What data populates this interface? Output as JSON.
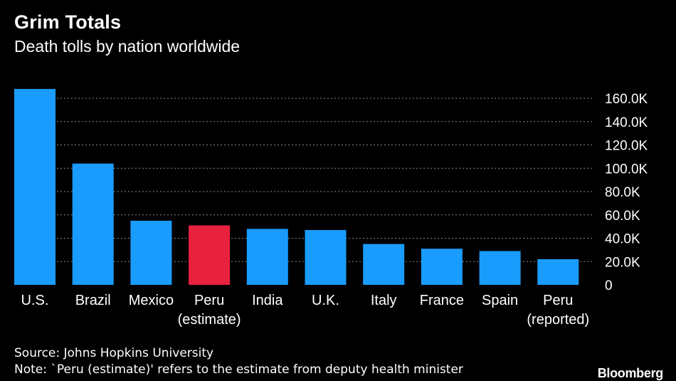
{
  "header": {
    "title": "Grim Totals",
    "subtitle": "Death tolls by nation worldwide"
  },
  "chart_data": {
    "type": "bar",
    "title": "Grim Totals",
    "subtitle": "Death tolls by nation worldwide",
    "categories": [
      [
        "U.S."
      ],
      [
        "Brazil"
      ],
      [
        "Mexico"
      ],
      [
        "Peru",
        "(estimate)"
      ],
      [
        "India"
      ],
      [
        "U.K."
      ],
      [
        "Italy"
      ],
      [
        "France"
      ],
      [
        "Spain"
      ],
      [
        "Peru",
        "(reported)"
      ]
    ],
    "values": [
      168000,
      104000,
      55000,
      51000,
      48000,
      47000,
      35000,
      31000,
      29000,
      22000
    ],
    "highlight_index": 3,
    "colors": {
      "bar": "#1a9cff",
      "highlight": "#e8213e",
      "grid": "#8a8a8a",
      "background": "#000000",
      "text": "#ffffff"
    },
    "ylim": [
      0,
      160000
    ],
    "yticks": [
      0,
      20000,
      40000,
      60000,
      80000,
      100000,
      120000,
      140000,
      160000
    ],
    "ytick_labels": [
      "0",
      "20.0K",
      "40.0K",
      "60.0K",
      "80.0K",
      "100.0K",
      "120.0K",
      "140.0K",
      "160.0K"
    ],
    "y_axis_side": "right",
    "grid": true,
    "xlabel": "",
    "ylabel": ""
  },
  "footer": {
    "source": "Source: Johns Hopkins University",
    "note": "Note: `Peru (estimate)' refers to the estimate from deputy health minister",
    "brand": "Bloomberg"
  }
}
